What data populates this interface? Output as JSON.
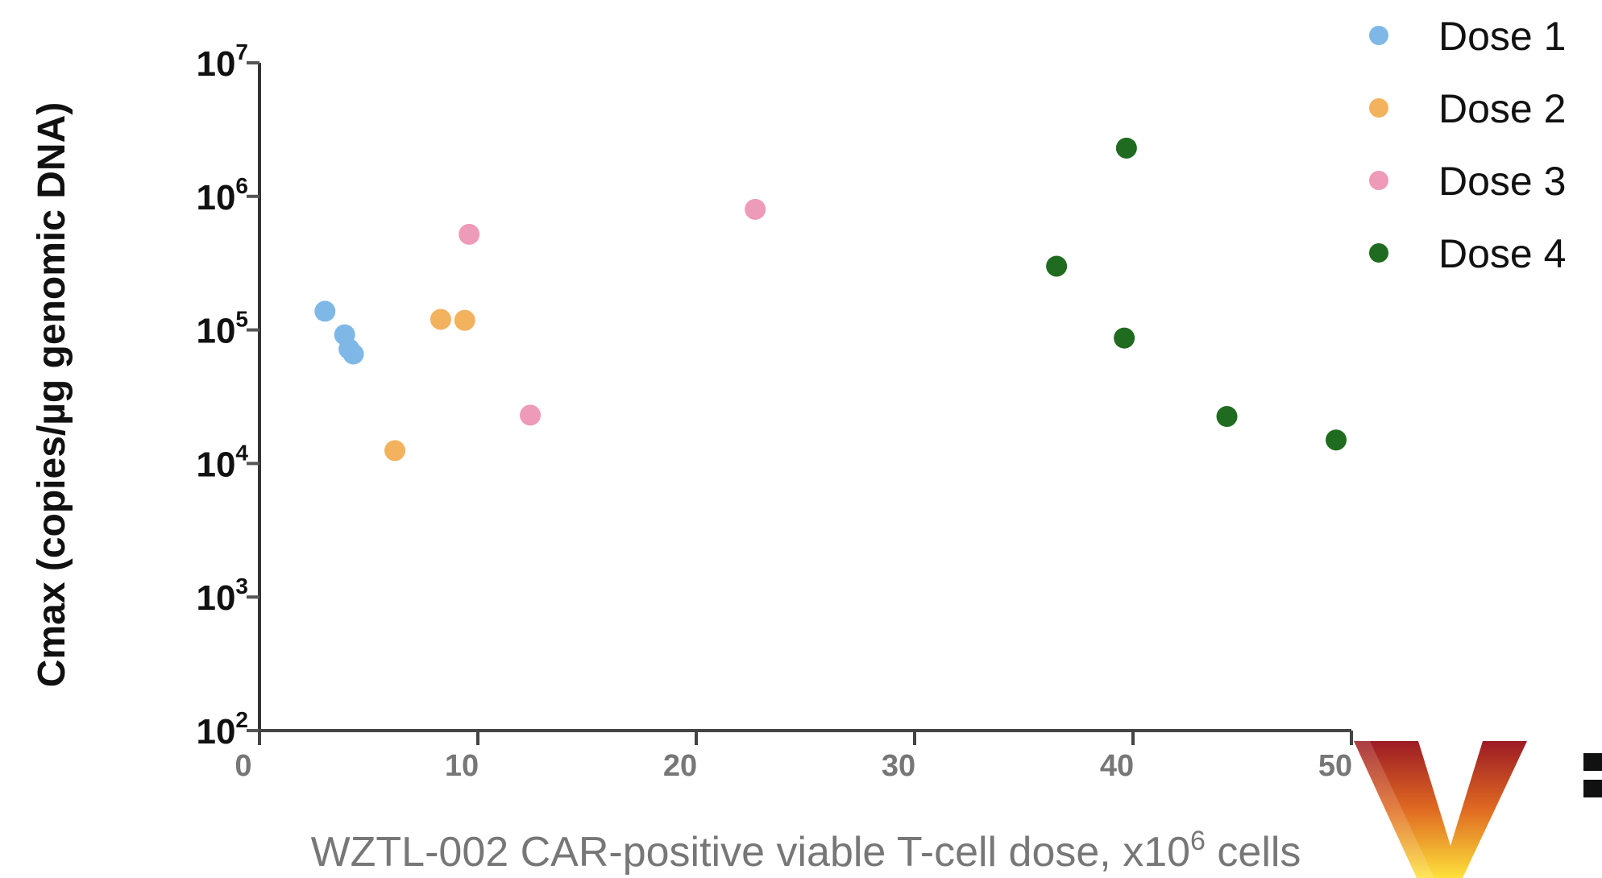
{
  "chart_data": {
    "type": "scatter",
    "xlabel": "WZTL-002 CAR-positive viable T-cell dose, x10",
    "xlabel_sup": "6",
    "xlabel_suffix": " cells",
    "ylabel": "Cmax (copies/µg genomic DNA)",
    "xlim": [
      0,
      50
    ],
    "ylim": [
      100,
      10000000
    ],
    "yscale": "log",
    "xticks": [
      0,
      10,
      20,
      30,
      40,
      50
    ],
    "yticks": [
      {
        "value": 100,
        "base": "10",
        "exp": "2"
      },
      {
        "value": 1000,
        "base": "10",
        "exp": "3"
      },
      {
        "value": 10000,
        "base": "10",
        "exp": "4"
      },
      {
        "value": 100000,
        "base": "10",
        "exp": "5"
      },
      {
        "value": 1000000,
        "base": "10",
        "exp": "6"
      },
      {
        "value": 10000000,
        "base": "10",
        "exp": "7"
      }
    ],
    "legend_position": "top-right",
    "series": [
      {
        "name": "Dose 1",
        "color": "#7fb8e6",
        "points": [
          {
            "x": 3.0,
            "y": 138000
          },
          {
            "x": 3.9,
            "y": 92000
          },
          {
            "x": 4.1,
            "y": 72000
          },
          {
            "x": 4.3,
            "y": 66000
          }
        ]
      },
      {
        "name": "Dose 2",
        "color": "#f2b25e",
        "points": [
          {
            "x": 6.2,
            "y": 12500
          },
          {
            "x": 8.3,
            "y": 120000
          },
          {
            "x": 9.4,
            "y": 118000
          }
        ]
      },
      {
        "name": "Dose 3",
        "color": "#ee9ab9",
        "points": [
          {
            "x": 9.6,
            "y": 520000
          },
          {
            "x": 12.4,
            "y": 23000
          },
          {
            "x": 22.7,
            "y": 800000
          }
        ]
      },
      {
        "name": "Dose 4",
        "color": "#1f6b1f",
        "points": [
          {
            "x": 36.5,
            "y": 300000
          },
          {
            "x": 39.7,
            "y": 2300000
          },
          {
            "x": 39.6,
            "y": 87000
          },
          {
            "x": 44.3,
            "y": 22500
          },
          {
            "x": 49.3,
            "y": 15000
          }
        ]
      }
    ]
  },
  "logo": {
    "colors": [
      "#9c1b24",
      "#e06a22",
      "#fde13b"
    ]
  }
}
